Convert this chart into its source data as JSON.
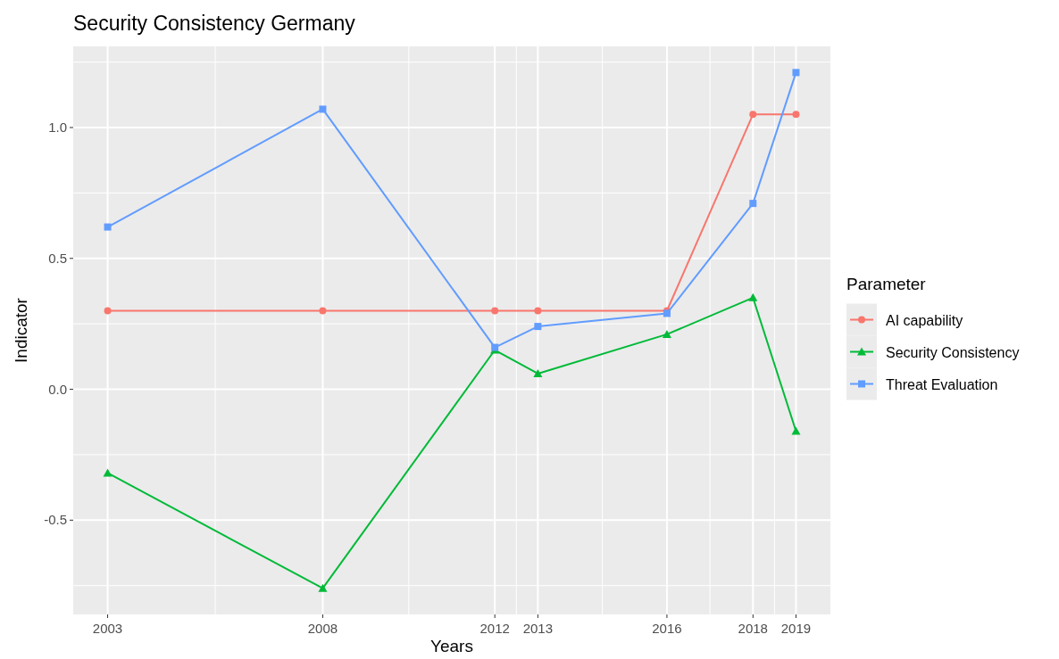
{
  "chart_data": {
    "type": "line",
    "title": "Security Consistency Germany",
    "xlabel": "Years",
    "ylabel": "Indicator",
    "legend_title": "Parameter",
    "legend": "right",
    "grid": true,
    "line_style": "solid",
    "x": [
      2003,
      2008,
      2012,
      2013,
      2016,
      2018,
      2019
    ],
    "xlim": [
      2002.2,
      2019.8
    ],
    "xticks": [
      2003,
      {
        "value": 2005.5,
        "label": null
      },
      2008,
      {
        "value": 2010,
        "label": null
      },
      2012,
      {
        "value": 2012.5,
        "label": null
      },
      2013,
      {
        "value": 2014.5,
        "label": null
      },
      2016,
      {
        "value": 2017,
        "label": null
      },
      2018,
      {
        "value": 2018.5,
        "label": null
      },
      2019
    ],
    "ylim": [
      -0.86,
      1.31
    ],
    "yticks": [
      {
        "value": -0.75,
        "label": null
      },
      {
        "value": -0.5,
        "label": "-0.5"
      },
      {
        "value": -0.25,
        "label": null
      },
      {
        "value": 0,
        "label": "0.0"
      },
      {
        "value": 0.25,
        "label": null
      },
      {
        "value": 0.5,
        "label": "0.5"
      },
      {
        "value": 0.75,
        "label": null
      },
      {
        "value": 1,
        "label": "1.0"
      },
      {
        "value": 1.25,
        "label": null
      }
    ],
    "series": [
      {
        "name": "AI capability",
        "color": "#f8766d",
        "marker": "circle",
        "values": [
          0.3,
          0.3,
          0.3,
          0.3,
          0.3,
          1.05,
          1.05
        ]
      },
      {
        "name": "Security Consistency",
        "color": "#00ba38",
        "marker": "triangle",
        "values": [
          -0.32,
          -0.76,
          0.15,
          0.06,
          0.21,
          0.35,
          -0.16
        ]
      },
      {
        "name": "Threat Evaluation",
        "color": "#619cff",
        "marker": "square",
        "values": [
          0.62,
          1.07,
          0.16,
          0.24,
          0.29,
          0.71,
          1.21
        ]
      }
    ]
  }
}
